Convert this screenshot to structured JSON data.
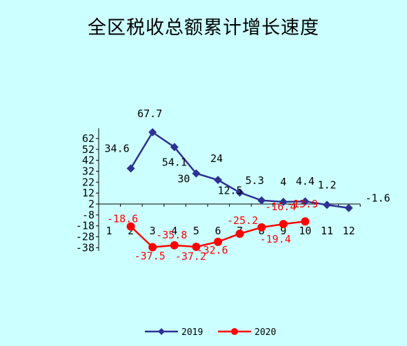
{
  "chart_data": {
    "type": "line",
    "title": "全区税收总额累计增长速度",
    "xlabel": "",
    "ylabel": "",
    "categories": [
      "1",
      "2",
      "3",
      "4",
      "5",
      "6",
      "7",
      "8",
      "9",
      "10",
      "11",
      "12"
    ],
    "y_ticks": [
      "62",
      "52",
      "42",
      "32",
      "22",
      "12",
      "2",
      "-8",
      "-18",
      "-28",
      "-38"
    ],
    "ylim": [
      -38,
      67
    ],
    "series": [
      {
        "name": "2019",
        "color": "#2e3192",
        "marker": "diamond",
        "values": [
          null,
          34.6,
          67.7,
          54.1,
          30,
          24,
          12.5,
          5.3,
          4,
          4.4,
          1.2,
          -1.6
        ],
        "labels": [
          "",
          "34.6",
          "67.7",
          "54.1",
          "30",
          "24",
          "12.5",
          "5.3",
          "4",
          "4.4",
          "1.2",
          "-1.6"
        ]
      },
      {
        "name": "2020",
        "color": "#ff0000",
        "marker": "circle",
        "values": [
          null,
          -18.6,
          -37.5,
          -35.8,
          -37.2,
          -32.6,
          -25.2,
          -19.4,
          -16.4,
          -13.9,
          null,
          null
        ],
        "labels": [
          "",
          "-18.6",
          "-37.5",
          "-35.8",
          "-37.2",
          "-32.6",
          "-25.2",
          "-19.4",
          "-16.4",
          "-13.9",
          "",
          ""
        ]
      }
    ],
    "grid": false,
    "legend_position": "bottom"
  }
}
